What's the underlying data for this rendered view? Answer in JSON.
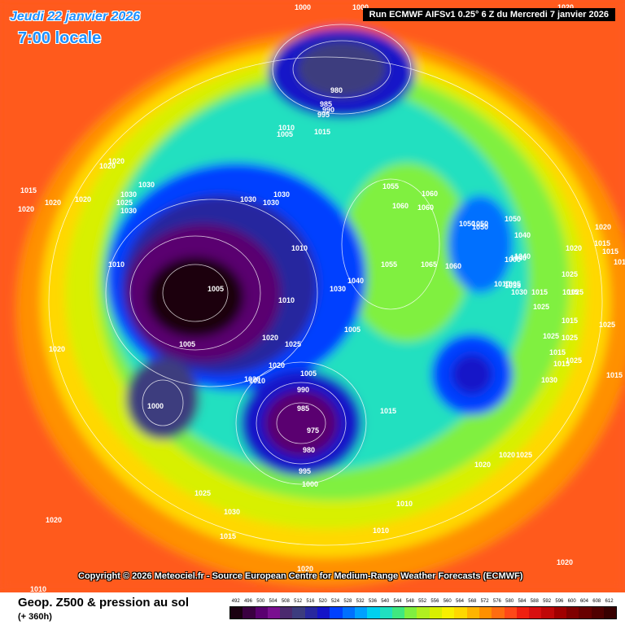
{
  "header": {
    "date": "Jeudi 22 janvier 2026",
    "time": "7:00 locale",
    "run": "Run ECMWF AIFSv1 0.25° 6 Z du Mercredi 7 janvier 2026"
  },
  "copyright": "Copyright © 2026 Meteociel.fr - Source European Centre for Medium-Range Weather Forecasts (ECMWF)",
  "footer": {
    "title": "Geop. Z500 & pression au sol",
    "subtitle": "(+ 360h)"
  },
  "legend": {
    "values": [
      "492",
      "496",
      "500",
      "504",
      "508",
      "512",
      "516",
      "520",
      "524",
      "528",
      "532",
      "536",
      "540",
      "544",
      "548",
      "552",
      "556",
      "560",
      "564",
      "568",
      "572",
      "576",
      "580",
      "584",
      "588",
      "592",
      "596",
      "600",
      "604",
      "608",
      "612"
    ],
    "colors": [
      "#1a0010",
      "#3a0040",
      "#5a0070",
      "#7a1090",
      "#4b2a6e",
      "#3c3c7e",
      "#28289e",
      "#1414c8",
      "#0040ff",
      "#0070ff",
      "#00a0ff",
      "#00d0f0",
      "#20e0c0",
      "#40e880",
      "#80f040",
      "#b0f020",
      "#d8f000",
      "#f8f000",
      "#ffd800",
      "#ffb400",
      "#ff9000",
      "#ff6c10",
      "#ff4818",
      "#f02010",
      "#d81010",
      "#c00808",
      "#a00000",
      "#800000",
      "#680000",
      "#500000",
      "#380000"
    ]
  },
  "isobars": [
    {
      "label": "1000"
    },
    {
      "label": "1005"
    },
    {
      "label": "1010"
    },
    {
      "label": "980"
    },
    {
      "label": "985"
    },
    {
      "label": "990"
    },
    {
      "label": "995"
    },
    {
      "label": "1005"
    },
    {
      "label": "1010"
    },
    {
      "label": "1015"
    },
    {
      "label": "1020"
    },
    {
      "label": "1020"
    },
    {
      "label": "1015"
    },
    {
      "label": "1020"
    },
    {
      "label": "1020"
    },
    {
      "label": "1020"
    },
    {
      "label": "1025"
    },
    {
      "label": "1030"
    },
    {
      "label": "1030"
    },
    {
      "label": "1030"
    },
    {
      "label": "1030"
    },
    {
      "label": "1030"
    },
    {
      "label": "1010"
    },
    {
      "label": "1000"
    },
    {
      "label": "1005"
    },
    {
      "label": "1010"
    },
    {
      "label": "1010"
    },
    {
      "label": "1020"
    },
    {
      "label": "1025"
    },
    {
      "label": "1020"
    },
    {
      "label": "1005"
    },
    {
      "label": "990"
    },
    {
      "label": "985"
    },
    {
      "label": "975"
    },
    {
      "label": "980"
    },
    {
      "label": "995"
    },
    {
      "label": "1000"
    },
    {
      "label": "1000"
    },
    {
      "label": "1050"
    },
    {
      "label": "1020"
    },
    {
      "label": "1055"
    },
    {
      "label": "1060"
    },
    {
      "label": "1060"
    },
    {
      "label": "1060"
    },
    {
      "label": "1055"
    },
    {
      "label": "1065"
    },
    {
      "label": "1060"
    },
    {
      "label": "1050"
    },
    {
      "label": "1050"
    },
    {
      "label": "1050"
    },
    {
      "label": "1040"
    },
    {
      "label": "1040"
    },
    {
      "label": "1040"
    },
    {
      "label": "1030"
    },
    {
      "label": "1030"
    },
    {
      "label": "1020"
    },
    {
      "label": "1025"
    },
    {
      "label": "1020"
    },
    {
      "label": "1015"
    },
    {
      "label": "1015"
    },
    {
      "label": "1025"
    },
    {
      "label": "1015"
    },
    {
      "label": "1025"
    },
    {
      "label": "1030"
    },
    {
      "label": "1025"
    },
    {
      "label": "1015"
    },
    {
      "label": "1015"
    },
    {
      "label": "1015"
    },
    {
      "label": "1025"
    },
    {
      "label": "1015"
    },
    {
      "label": "1025"
    },
    {
      "label": "1025"
    },
    {
      "label": "1010"
    },
    {
      "label": "1015"
    },
    {
      "label": "1005"
    },
    {
      "label": "1020"
    },
    {
      "label": "1025"
    },
    {
      "label": "1030"
    },
    {
      "label": "1015"
    },
    {
      "label": "1020"
    },
    {
      "label": "1020"
    },
    {
      "label": "1010"
    },
    {
      "label": "1020"
    },
    {
      "label": "1010"
    },
    {
      "label": "1005"
    },
    {
      "label": "1010"
    },
    {
      "label": "1000"
    },
    {
      "label": "1015"
    },
    {
      "label": "1020"
    },
    {
      "label": "1020"
    },
    {
      "label": "1030"
    },
    {
      "label": "1025"
    },
    {
      "label": "1020"
    },
    {
      "label": "1040"
    },
    {
      "label": "1010"
    },
    {
      "label": "1035"
    }
  ],
  "colors": {
    "background": "#ff5a1e",
    "banner": "#000000",
    "date_text": "#1e90ff"
  }
}
